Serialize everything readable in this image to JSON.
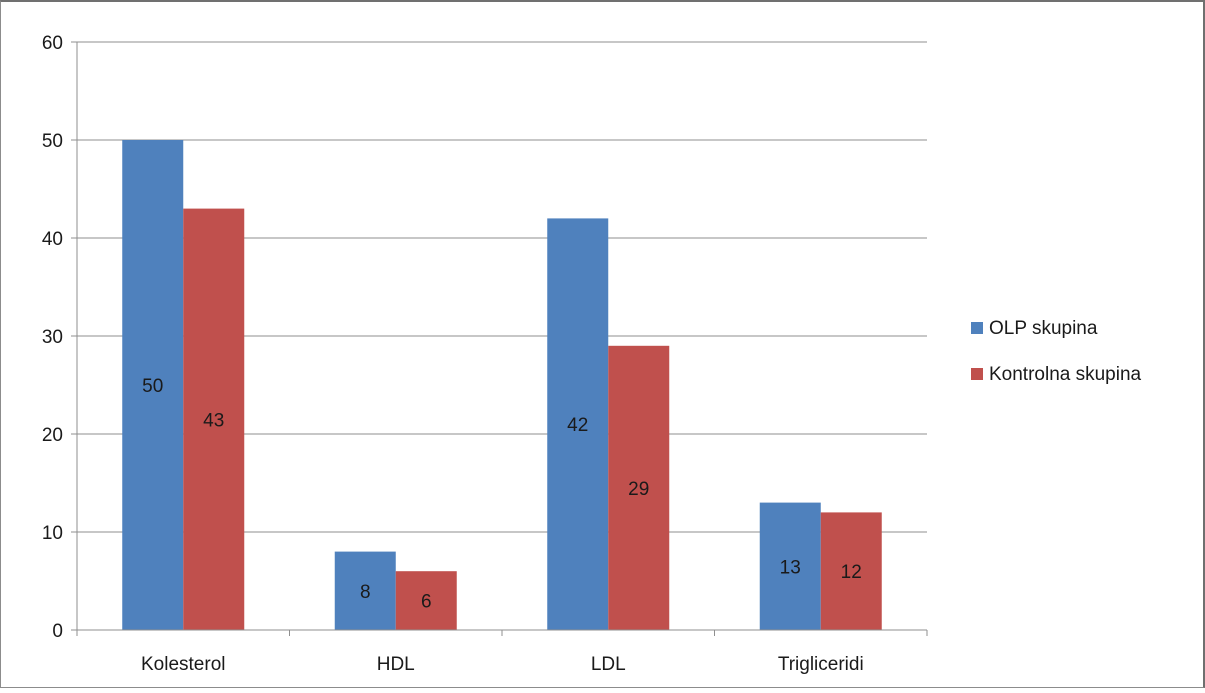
{
  "chart_data": {
    "type": "bar",
    "categories": [
      "Kolesterol",
      "HDL",
      "LDL",
      "Trigliceridi"
    ],
    "series": [
      {
        "name": "OLP skupina",
        "values": [
          50,
          8,
          42,
          13
        ],
        "color": "#4f81bd"
      },
      {
        "name": "Kontrolna skupina",
        "values": [
          43,
          6,
          29,
          12
        ],
        "color": "#c0504d"
      }
    ],
    "title": "",
    "xlabel": "",
    "ylabel": "",
    "ylim": [
      0,
      60
    ],
    "yticks": [
      0,
      10,
      20,
      30,
      40,
      50,
      60
    ],
    "grid": true,
    "legend_position": "right",
    "data_labels": true
  }
}
